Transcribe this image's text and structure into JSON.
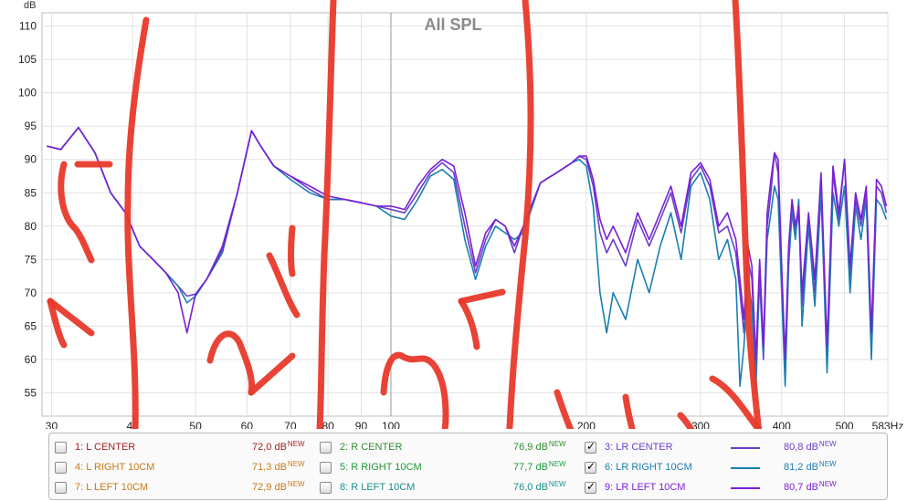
{
  "chart_data": {
    "type": "line",
    "title": "All SPL",
    "ylabel": "dB",
    "xlabel": "",
    "x_unit": "Hz",
    "x_scale": "log",
    "xlim": [
      29,
      583
    ],
    "ylim": [
      51.5,
      112
    ],
    "y_ticks": [
      110,
      105,
      100,
      95,
      90,
      85,
      80,
      75,
      70,
      65,
      60,
      55
    ],
    "x_ticks": [
      {
        "v": 30,
        "label": "30"
      },
      {
        "v": 40,
        "label": "40"
      },
      {
        "v": 50,
        "label": "50"
      },
      {
        "v": 60,
        "label": "60"
      },
      {
        "v": 70,
        "label": "70"
      },
      {
        "v": 80,
        "label": "80"
      },
      {
        "v": 90,
        "label": "90"
      },
      {
        "v": 100,
        "label": "100"
      },
      {
        "v": 200,
        "label": "200"
      },
      {
        "v": 300,
        "label": "300"
      },
      {
        "v": 400,
        "label": "400"
      },
      {
        "v": 500,
        "label": "500"
      },
      {
        "v": 583,
        "label": "583Hz"
      }
    ],
    "grid": true,
    "series": [
      {
        "name": "LR CENTER",
        "color": "#6a3fc8",
        "visible": true,
        "x": [
          29.5,
          31,
          33,
          35,
          37,
          39,
          41,
          43,
          45,
          47,
          48.5,
          50,
          52,
          55,
          58,
          61,
          63,
          66,
          70,
          75,
          80,
          85,
          90,
          95,
          100,
          105,
          110,
          115,
          120,
          125,
          130,
          135,
          140,
          145,
          150,
          155,
          160,
          170,
          180,
          190,
          195,
          200,
          205,
          210,
          215,
          220,
          230,
          240,
          250,
          260,
          270,
          280,
          290,
          300,
          310,
          320,
          330,
          340,
          345,
          350,
          355,
          360,
          365,
          370,
          375,
          380,
          385,
          390,
          395,
          400,
          405,
          410,
          415,
          420,
          425,
          430,
          440,
          450,
          460,
          470,
          480,
          490,
          500,
          510,
          520,
          530,
          540,
          550,
          560,
          570,
          580
        ],
        "y": [
          92,
          91.5,
          94.8,
          91,
          85,
          82,
          77,
          75,
          73,
          71,
          69.5,
          69.8,
          72,
          77,
          85,
          94.3,
          92,
          89,
          87.5,
          85.5,
          84,
          84,
          83.5,
          83,
          82.5,
          82,
          85,
          88,
          89.5,
          88,
          80,
          73,
          78,
          81,
          80,
          76,
          80,
          86.5,
          88,
          89.5,
          90.5,
          90,
          86,
          79,
          76,
          78,
          74,
          81,
          77,
          81,
          85,
          79,
          87,
          89,
          86,
          79,
          80,
          76,
          70,
          64,
          75,
          72,
          58,
          72,
          60,
          80,
          85,
          91,
          88,
          72,
          58,
          76,
          83,
          79,
          82,
          68,
          81,
          70,
          87,
          60,
          88,
          81,
          90,
          72,
          84,
          80,
          85,
          62,
          86,
          85,
          82
        ]
      },
      {
        "name": "LR RIGHT 10CM",
        "color": "#1a7fb0",
        "visible": true,
        "x": [
          29.5,
          31,
          33,
          35,
          37,
          39,
          41,
          43,
          45,
          47,
          48.5,
          50,
          52,
          55,
          58,
          61,
          63,
          66,
          70,
          75,
          80,
          85,
          90,
          95,
          100,
          105,
          110,
          115,
          120,
          125,
          130,
          135,
          140,
          145,
          150,
          155,
          160,
          170,
          180,
          190,
          195,
          200,
          205,
          210,
          215,
          220,
          230,
          240,
          250,
          260,
          270,
          280,
          290,
          300,
          310,
          320,
          330,
          340,
          345,
          350,
          355,
          360,
          365,
          370,
          375,
          380,
          385,
          390,
          395,
          400,
          405,
          410,
          415,
          420,
          425,
          430,
          440,
          450,
          460,
          470,
          480,
          490,
          500,
          510,
          520,
          530,
          540,
          550,
          560,
          570,
          580
        ],
        "y": [
          92,
          91.5,
          94.8,
          91,
          85,
          82,
          77,
          75,
          73,
          71,
          68.5,
          69.5,
          72,
          76,
          85,
          94.3,
          92,
          89,
          87,
          85,
          84,
          84,
          83.5,
          83,
          81.5,
          81,
          84,
          87.5,
          88.5,
          87,
          78,
          72,
          77,
          80,
          79,
          78,
          79,
          86.5,
          88,
          89.5,
          90,
          89,
          83,
          70,
          64,
          70,
          66,
          75,
          70,
          77,
          82,
          75,
          86,
          88,
          84,
          75,
          78,
          72,
          56,
          62,
          72,
          68,
          55,
          74,
          61,
          78,
          82,
          86,
          84,
          70,
          56,
          74,
          82,
          78,
          84,
          65,
          80,
          68,
          85,
          58,
          85,
          80,
          86,
          70,
          83,
          78,
          84,
          60,
          84,
          83,
          81
        ]
      },
      {
        "name": "LR LEFT 10CM",
        "color": "#7a1fd8",
        "visible": true,
        "x": [
          29.5,
          31,
          33,
          35,
          37,
          39,
          41,
          43,
          45,
          47,
          48.5,
          50,
          52,
          55,
          58,
          61,
          63,
          66,
          70,
          75,
          80,
          85,
          90,
          95,
          100,
          105,
          110,
          115,
          120,
          125,
          130,
          135,
          140,
          145,
          150,
          155,
          160,
          170,
          180,
          190,
          195,
          200,
          205,
          210,
          215,
          220,
          230,
          240,
          250,
          260,
          270,
          280,
          290,
          300,
          310,
          320,
          330,
          340,
          345,
          350,
          355,
          360,
          365,
          370,
          375,
          380,
          385,
          390,
          395,
          400,
          405,
          410,
          415,
          420,
          425,
          430,
          440,
          450,
          460,
          470,
          480,
          490,
          500,
          510,
          520,
          530,
          540,
          550,
          560,
          570,
          580
        ],
        "y": [
          92,
          91.5,
          94.8,
          91,
          85,
          82,
          77,
          75,
          73,
          70,
          64,
          69.8,
          72,
          76.5,
          85,
          94.3,
          92,
          89,
          87.5,
          86,
          84.5,
          84,
          83.5,
          83,
          83,
          82.5,
          86,
          88.5,
          90,
          89,
          82,
          74,
          79,
          81,
          80,
          77,
          80,
          86.5,
          88,
          89.5,
          90.5,
          90.5,
          87,
          81,
          78,
          80,
          76,
          82,
          78,
          82,
          86,
          80,
          88,
          89.5,
          87,
          80,
          82,
          78,
          72,
          66,
          77,
          74,
          60,
          75,
          62,
          82,
          87,
          91,
          90,
          74,
          60,
          77,
          84,
          80,
          83,
          70,
          82,
          72,
          88,
          62,
          89,
          82,
          90,
          74,
          85,
          81,
          86,
          64,
          87,
          86,
          83
        ]
      }
    ]
  },
  "legend": {
    "items": [
      {
        "checkbox_checked": false,
        "label": "1: L CENTER",
        "value": "72,0 dB",
        "badge": "NEW",
        "color": "#9c1f1f"
      },
      {
        "checkbox_checked": false,
        "label": "2: R CENTER",
        "value": "76,9 dB",
        "badge": "NEW",
        "color": "#2f8f2f"
      },
      {
        "checkbox_checked": true,
        "label": "3: LR CENTER",
        "value": "80,8 dB",
        "badge": "NEW",
        "color": "#6a3fc8"
      },
      {
        "checkbox_checked": false,
        "label": "4: L RIGHT 10CM",
        "value": "71,3 dB",
        "badge": "NEW",
        "color": "#c77a1a"
      },
      {
        "checkbox_checked": false,
        "label": "5: R RIGHT 10CM",
        "value": "77,7 dB",
        "badge": "NEW",
        "color": "#1f9a3a"
      },
      {
        "checkbox_checked": true,
        "label": "6: LR RIGHT 10CM",
        "value": "81,2 dB",
        "badge": "NEW",
        "color": "#1a7fb0"
      },
      {
        "checkbox_checked": false,
        "label": "7: L LEFT 10CM",
        "value": "72,9 dB",
        "badge": "NEW",
        "color": "#c77a1a"
      },
      {
        "checkbox_checked": false,
        "label": "8: R LEFT 10CM",
        "value": "76,0 dB",
        "badge": "NEW",
        "color": "#1a8f8f"
      },
      {
        "checkbox_checked": true,
        "label": "9: LR LEFT 10CM",
        "value": "80,7 dB",
        "badge": "NEW",
        "color": "#7a1fd8"
      }
    ],
    "checkmark_glyph": "✓"
  },
  "annotation_color": "#e8392b"
}
